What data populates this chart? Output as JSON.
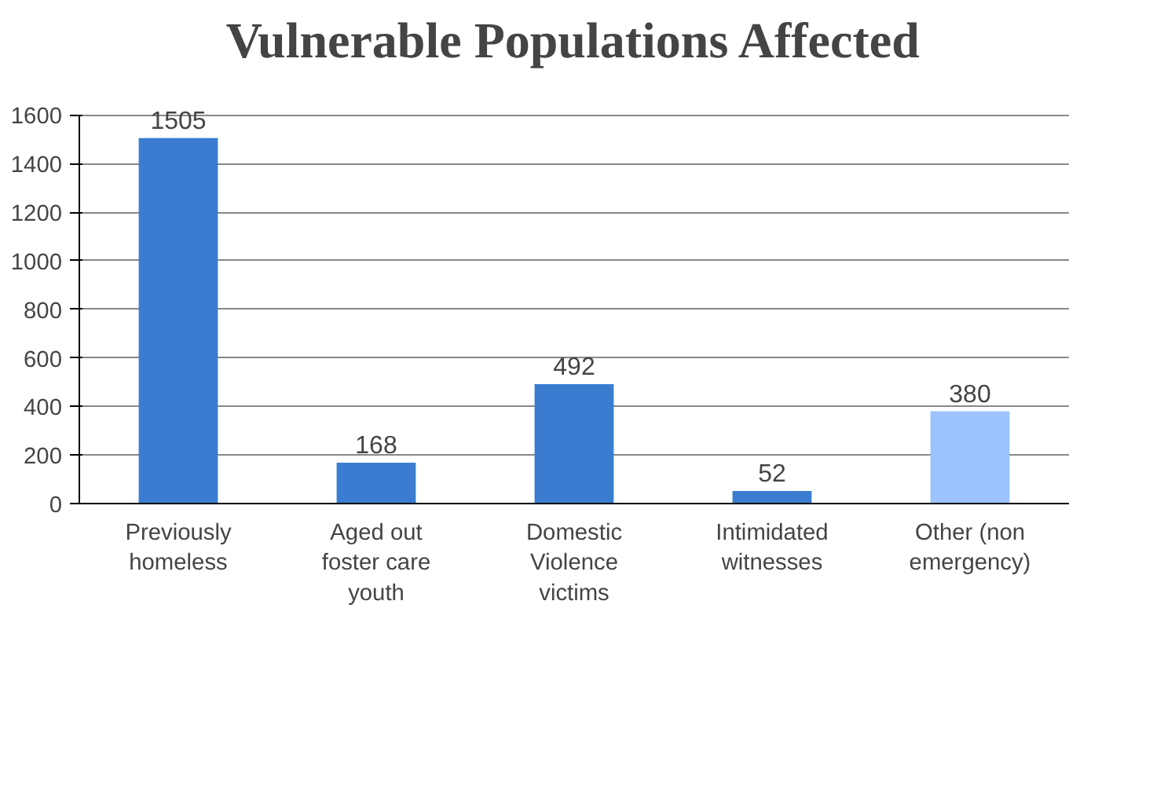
{
  "chart_data": {
    "type": "bar",
    "title": "Vulnerable Populations Affected",
    "categories": [
      "Previously\nhomeless",
      "Aged out\nfoster care\nyouth",
      "Domestic\nViolence\nvictims",
      "Intimidated\nwitnesses",
      "Other (non\nemergency)"
    ],
    "values": [
      1505,
      168,
      492,
      52,
      380
    ],
    "colors": [
      "#3a7dd0",
      "#3a7dd0",
      "#3a7dd0",
      "#3a7dd0",
      "#9dc3ff"
    ],
    "ylim": [
      0,
      1600
    ],
    "yticks": [
      0,
      200,
      400,
      600,
      800,
      1000,
      1200,
      1400,
      1600
    ],
    "grid": "y",
    "data_labels": true
  }
}
